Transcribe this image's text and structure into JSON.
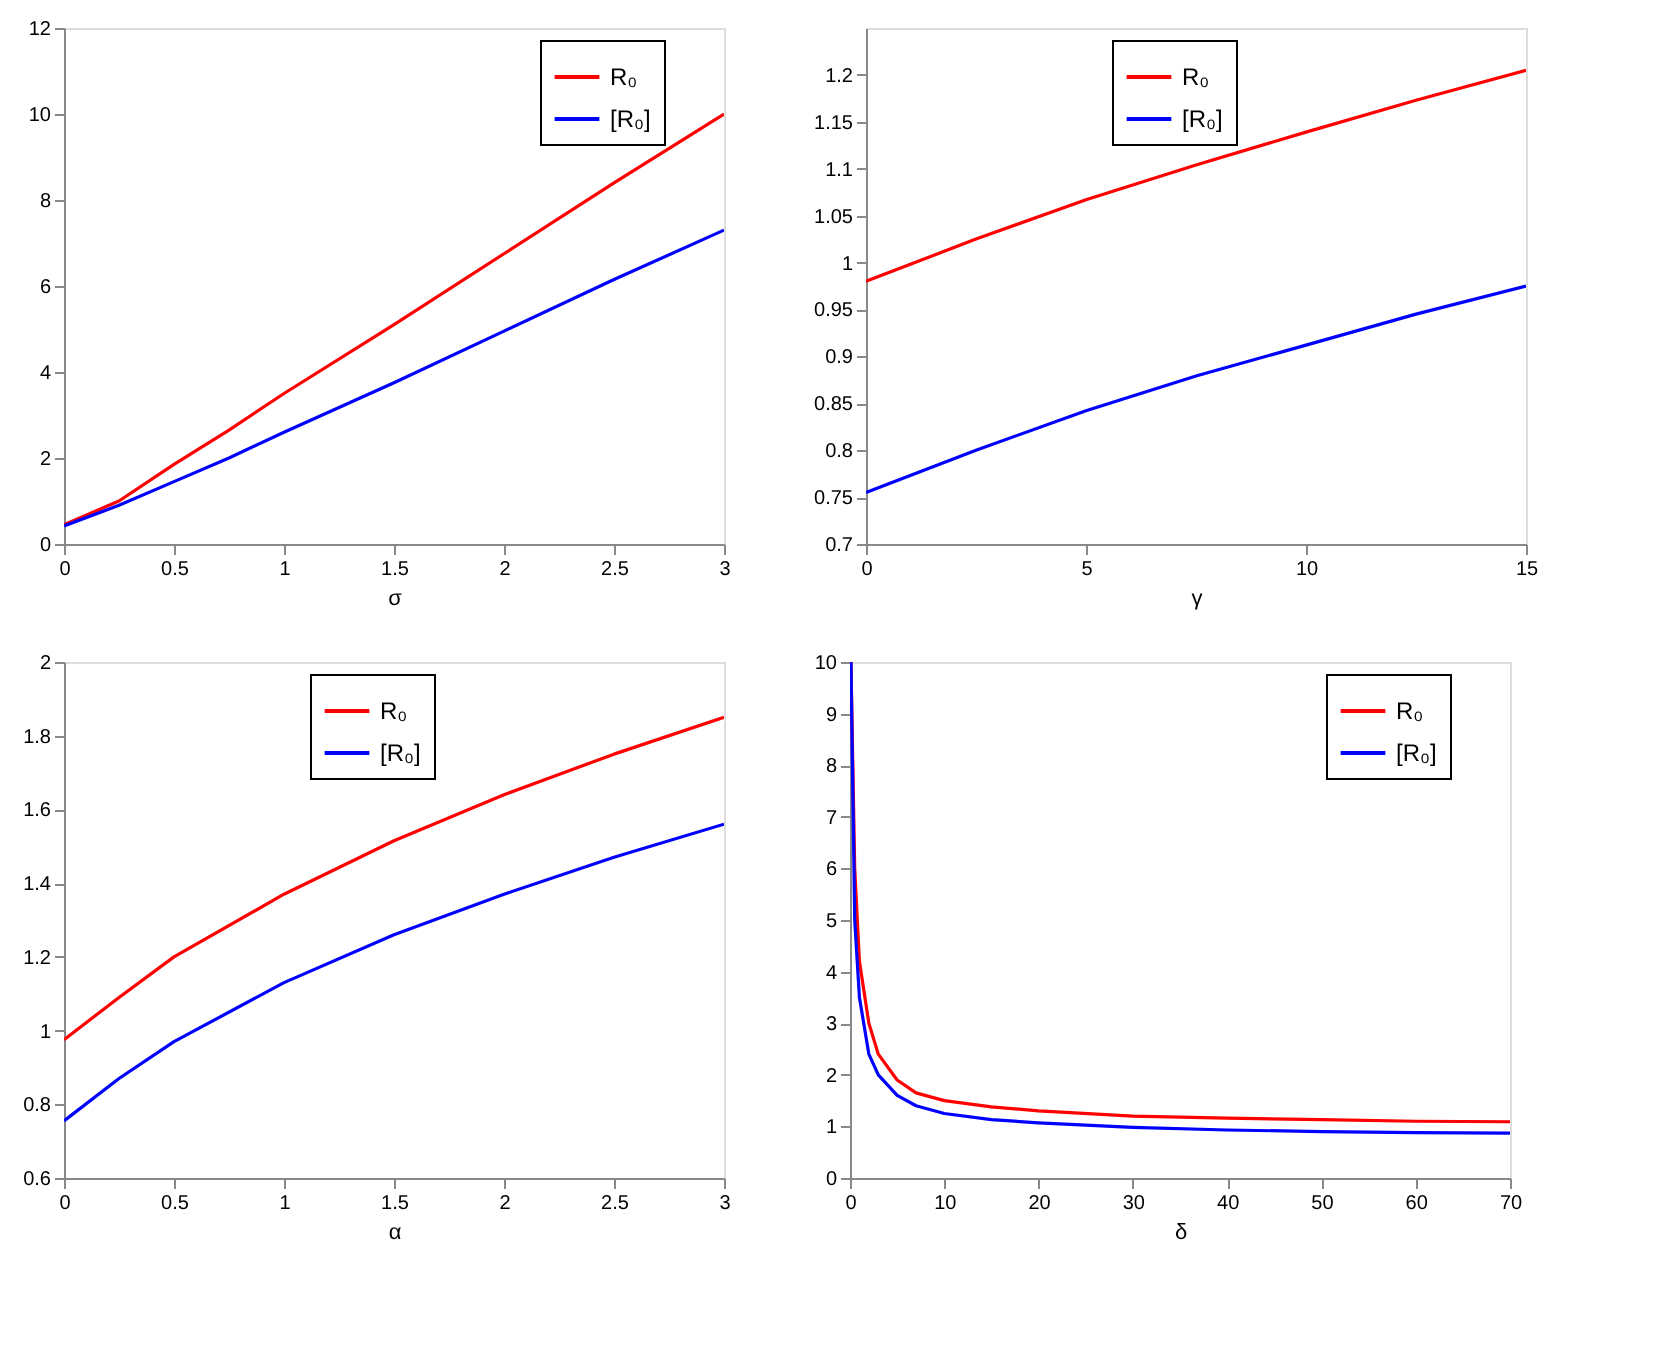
{
  "chart_data": [
    {
      "type": "line",
      "xlabel": "σ",
      "xlim": [
        0,
        3
      ],
      "xticks": [
        0,
        0.5,
        1,
        1.5,
        2,
        2.5,
        3
      ],
      "ylim": [
        0,
        12
      ],
      "yticks": [
        0,
        2,
        4,
        6,
        8,
        10,
        12
      ],
      "legend": "top right",
      "grid": false,
      "series": [
        {
          "name": "R₀",
          "color": "#ff0000",
          "x": [
            0,
            0.25,
            0.5,
            0.75,
            1,
            1.5,
            2,
            2.5,
            3
          ],
          "values": [
            0.45,
            1.0,
            1.85,
            2.65,
            3.5,
            5.1,
            6.75,
            8.4,
            10
          ]
        },
        {
          "name": "[R₀]",
          "color": "#0000ff",
          "x": [
            0,
            0.25,
            0.5,
            0.75,
            1,
            1.5,
            2,
            2.5,
            3
          ],
          "values": [
            0.42,
            0.9,
            1.45,
            2.0,
            2.6,
            3.75,
            4.95,
            6.15,
            7.3
          ]
        }
      ]
    },
    {
      "type": "line",
      "xlabel": "γ",
      "xlim": [
        0,
        15
      ],
      "xticks": [
        0,
        5,
        10,
        15
      ],
      "ylim": [
        0.7,
        1.25
      ],
      "yticks": [
        0.7,
        0.75,
        0.8,
        0.85,
        0.9,
        0.95,
        1,
        1.05,
        1.1,
        1.15,
        1.2
      ],
      "legend": "top",
      "grid": false,
      "series": [
        {
          "name": "R₀",
          "color": "#ff0000",
          "x": [
            0,
            2.5,
            5,
            7.5,
            10,
            12.5,
            15
          ],
          "values": [
            0.98,
            1.025,
            1.067,
            1.104,
            1.139,
            1.173,
            1.205
          ]
        },
        {
          "name": "[R₀]",
          "color": "#0000ff",
          "x": [
            0,
            2.5,
            5,
            7.5,
            10,
            12.5,
            15
          ],
          "values": [
            0.755,
            0.8,
            0.842,
            0.879,
            0.912,
            0.945,
            0.975
          ]
        }
      ]
    },
    {
      "type": "line",
      "xlabel": "α",
      "xlim": [
        0,
        3
      ],
      "xticks": [
        0,
        0.5,
        1,
        1.5,
        2,
        2.5,
        3
      ],
      "ylim": [
        0.6,
        2
      ],
      "yticks": [
        0.6,
        0.8,
        1,
        1.2,
        1.4,
        1.6,
        1.8,
        2
      ],
      "legend": "top",
      "grid": false,
      "series": [
        {
          "name": "R₀",
          "color": "#ff0000",
          "x": [
            0,
            0.25,
            0.5,
            1,
            1.5,
            2,
            2.5,
            3
          ],
          "values": [
            0.975,
            1.09,
            1.2,
            1.37,
            1.515,
            1.64,
            1.75,
            1.85
          ]
        },
        {
          "name": "[R₀]",
          "color": "#0000ff",
          "x": [
            0,
            0.25,
            0.5,
            1,
            1.5,
            2,
            2.5,
            3
          ],
          "values": [
            0.755,
            0.87,
            0.97,
            1.13,
            1.26,
            1.37,
            1.47,
            1.56
          ]
        }
      ]
    },
    {
      "type": "line",
      "xlabel": "δ",
      "xlim": [
        0,
        70
      ],
      "xticks": [
        0,
        10,
        20,
        30,
        40,
        50,
        60,
        70
      ],
      "ylim": [
        0,
        10
      ],
      "yticks": [
        0,
        1,
        2,
        3,
        4,
        5,
        6,
        7,
        8,
        9,
        10
      ],
      "legend": "top right",
      "grid": false,
      "series": [
        {
          "name": "R₀",
          "color": "#ff0000",
          "x": [
            0.1,
            0.5,
            1,
            2,
            3,
            5,
            7,
            10,
            15,
            20,
            30,
            40,
            50,
            60,
            70
          ],
          "values": [
            10,
            6,
            4.2,
            3.0,
            2.4,
            1.9,
            1.65,
            1.5,
            1.38,
            1.3,
            1.2,
            1.16,
            1.13,
            1.1,
            1.09
          ]
        },
        {
          "name": "[R₀]",
          "color": "#0000ff",
          "x": [
            0.1,
            0.5,
            1,
            2,
            3,
            5,
            7,
            10,
            15,
            20,
            30,
            40,
            50,
            60,
            70
          ],
          "values": [
            10,
            5,
            3.5,
            2.4,
            2.0,
            1.6,
            1.4,
            1.25,
            1.13,
            1.07,
            0.98,
            0.93,
            0.9,
            0.88,
            0.87
          ]
        }
      ]
    }
  ]
}
